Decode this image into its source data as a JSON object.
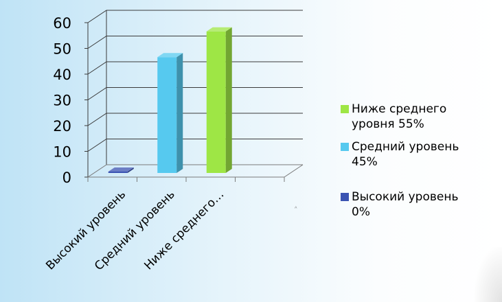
{
  "chart_data": {
    "type": "bar",
    "chart_style": "3d-clustered-column",
    "title": "",
    "xlabel": "",
    "ylabel": "",
    "ylim": [
      0,
      60
    ],
    "yticks": [
      0,
      10,
      20,
      30,
      40,
      50,
      60
    ],
    "grid": true,
    "legend_position": "right",
    "categories": [
      "Высокий уровень",
      "Средний уровень",
      "Ниже среднего…"
    ],
    "values": [
      0,
      45,
      55
    ],
    "colors": [
      "#3a53b2",
      "#56c9ef",
      "#9ee645"
    ],
    "legend": [
      {
        "label": "Ниже среднего\nуровня 55%",
        "color": "#9ee645"
      },
      {
        "label": "Средний уровень\n45%",
        "color": "#56c9ef"
      },
      {
        "label": "Высокий уровень\n0%",
        "color": "#3a53b2"
      }
    ]
  }
}
